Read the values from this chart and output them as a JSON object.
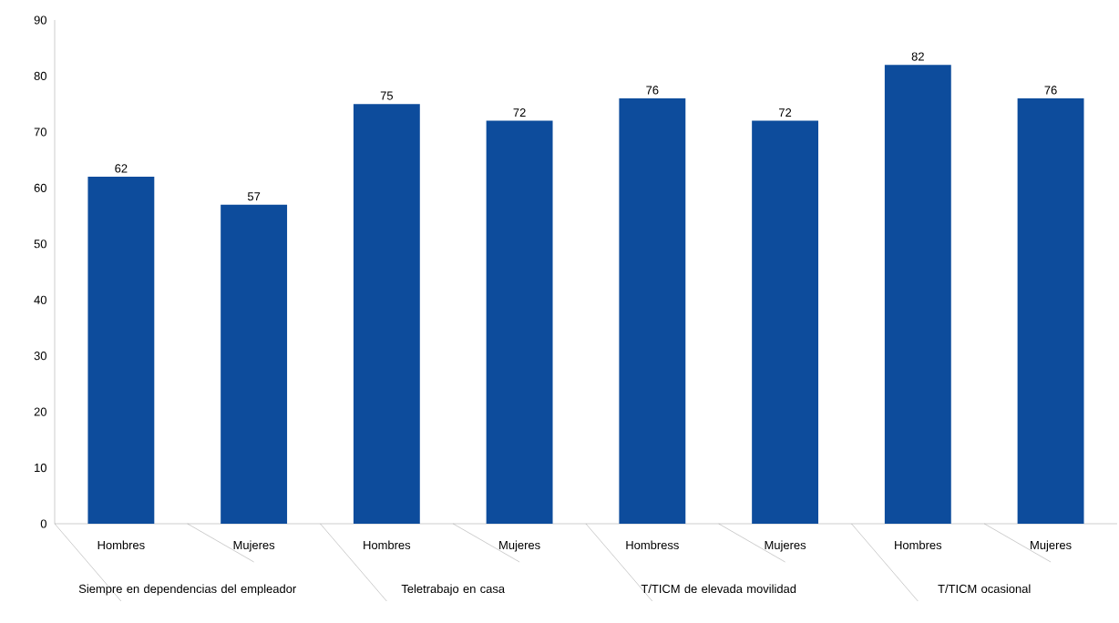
{
  "chart_data": {
    "type": "bar",
    "categories": [
      "Hombres",
      "Mujeres",
      "Hombres",
      "Mujeres",
      "Hombress",
      "Mujeres",
      "Hombres",
      "Mujeres"
    ],
    "values": [
      62,
      57,
      75,
      72,
      76,
      72,
      82,
      76
    ],
    "color": "#0d4c9c",
    "data_labels": true,
    "ylim": [
      0,
      90
    ],
    "yticks": [
      0,
      10,
      20,
      30,
      40,
      50,
      60,
      70,
      80,
      90
    ],
    "annotations": [
      "Siempre en dependencias del empleador",
      "Teletrabajo en casa",
      "T/TICM de elevada movilidad",
      "T/TICM ocasional"
    ]
  }
}
